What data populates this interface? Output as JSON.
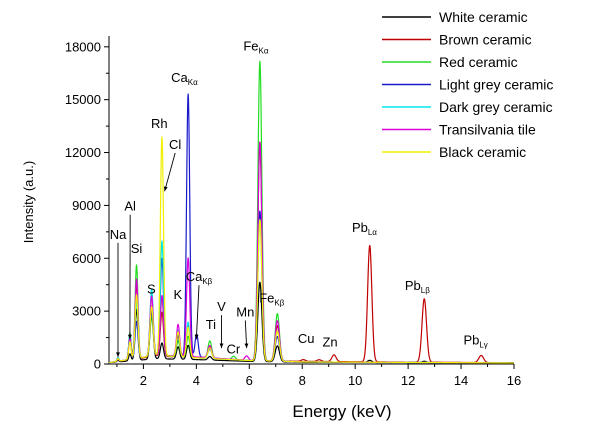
{
  "chart_data": {
    "type": "line",
    "title": "",
    "xlabel": "Energy (keV)",
    "ylabel": "Intensity (a.u.)",
    "xlim": [
      0.7,
      16
    ],
    "ylim": [
      0,
      18500
    ],
    "x_ticks": [
      2,
      4,
      6,
      8,
      10,
      12,
      14,
      16
    ],
    "y_ticks": [
      0,
      3000,
      6000,
      9000,
      12000,
      15000,
      18000
    ],
    "legend": {
      "placement": "top-right"
    },
    "series": [
      {
        "name": "White ceramic",
        "color": "#000000",
        "baseline": [
          [
            0.7,
            80
          ],
          [
            2.5,
            300
          ],
          [
            4,
            250
          ],
          [
            6,
            150
          ],
          [
            8,
            100
          ],
          [
            16,
            60
          ]
        ],
        "peaks": [
          [
            1.04,
            100,
            0.035
          ],
          [
            1.49,
            400,
            0.045
          ],
          [
            1.74,
            2900,
            0.055
          ],
          [
            2.31,
            3000,
            0.06
          ],
          [
            2.7,
            900,
            0.06
          ],
          [
            3.31,
            700,
            0.06
          ],
          [
            3.69,
            800,
            0.06
          ],
          [
            4.51,
            200,
            0.07
          ],
          [
            6.4,
            4500,
            0.075
          ],
          [
            7.06,
            900,
            0.08
          ],
          [
            10.55,
            120,
            0.08
          ],
          [
            12.61,
            80,
            0.08
          ]
        ]
      },
      {
        "name": "Brown ceramic",
        "color": "#c00000",
        "baseline": [
          [
            0.7,
            80
          ],
          [
            2.5,
            450
          ],
          [
            4,
            350
          ],
          [
            6,
            200
          ],
          [
            8,
            150
          ],
          [
            10,
            130
          ],
          [
            16,
            70
          ]
        ],
        "peaks": [
          [
            1.04,
            150,
            0.035
          ],
          [
            1.49,
            1200,
            0.045
          ],
          [
            1.74,
            4300,
            0.055
          ],
          [
            2.31,
            3600,
            0.06
          ],
          [
            2.7,
            2500,
            0.06
          ],
          [
            3.31,
            1200,
            0.06
          ],
          [
            3.69,
            1800,
            0.06
          ],
          [
            4.51,
            700,
            0.07
          ],
          [
            6.4,
            12400,
            0.075
          ],
          [
            7.06,
            2000,
            0.08
          ],
          [
            8.04,
            100,
            0.08
          ],
          [
            8.64,
            100,
            0.08
          ],
          [
            9.2,
            380,
            0.08
          ],
          [
            10.55,
            6600,
            0.08
          ],
          [
            12.61,
            3600,
            0.085
          ],
          [
            14.76,
            400,
            0.09
          ]
        ]
      },
      {
        "name": "Red ceramic",
        "color": "#22dd22",
        "baseline": [
          [
            0.7,
            80
          ],
          [
            2.5,
            500
          ],
          [
            4,
            350
          ],
          [
            6,
            200
          ],
          [
            8,
            120
          ],
          [
            16,
            60
          ]
        ],
        "peaks": [
          [
            1.04,
            200,
            0.035
          ],
          [
            1.49,
            1500,
            0.045
          ],
          [
            1.74,
            5300,
            0.055
          ],
          [
            2.31,
            2200,
            0.06
          ],
          [
            2.7,
            3300,
            0.06
          ],
          [
            3.31,
            900,
            0.06
          ],
          [
            3.69,
            1200,
            0.06
          ],
          [
            4.51,
            1000,
            0.07
          ],
          [
            5.41,
            200,
            0.07
          ],
          [
            6.4,
            17000,
            0.075
          ],
          [
            7.06,
            2700,
            0.08
          ]
        ]
      },
      {
        "name": "Light grey ceramic",
        "color": "#1a1acc",
        "baseline": [
          [
            0.7,
            80
          ],
          [
            2.5,
            500
          ],
          [
            4,
            400
          ],
          [
            6,
            200
          ],
          [
            8,
            120
          ],
          [
            16,
            60
          ]
        ],
        "peaks": [
          [
            1.04,
            200,
            0.035
          ],
          [
            1.49,
            1300,
            0.045
          ],
          [
            1.74,
            2100,
            0.055
          ],
          [
            2.31,
            2500,
            0.06
          ],
          [
            2.7,
            5500,
            0.06
          ],
          [
            3.31,
            1200,
            0.06
          ],
          [
            3.69,
            14900,
            0.06
          ],
          [
            4.01,
            1300,
            0.06
          ],
          [
            4.51,
            500,
            0.07
          ],
          [
            6.4,
            8500,
            0.075
          ],
          [
            7.06,
            1400,
            0.08
          ]
        ]
      },
      {
        "name": "Dark grey ceramic",
        "color": "#00e5ee",
        "baseline": [
          [
            0.7,
            80
          ],
          [
            2.5,
            500
          ],
          [
            4,
            350
          ],
          [
            6,
            200
          ],
          [
            8,
            120
          ],
          [
            16,
            60
          ]
        ],
        "peaks": [
          [
            1.04,
            200,
            0.035
          ],
          [
            1.49,
            1400,
            0.045
          ],
          [
            1.74,
            3300,
            0.055
          ],
          [
            2.31,
            3800,
            0.06
          ],
          [
            2.7,
            6500,
            0.06
          ],
          [
            3.31,
            1500,
            0.06
          ],
          [
            3.69,
            2000,
            0.06
          ],
          [
            4.51,
            600,
            0.07
          ],
          [
            6.4,
            8000,
            0.075
          ],
          [
            7.06,
            1700,
            0.08
          ]
        ]
      },
      {
        "name": "Transilvania tile",
        "color": "#dd00dd",
        "baseline": [
          [
            0.7,
            80
          ],
          [
            2.5,
            500
          ],
          [
            4,
            400
          ],
          [
            6,
            200
          ],
          [
            8,
            120
          ],
          [
            16,
            60
          ]
        ],
        "peaks": [
          [
            1.04,
            150,
            0.035
          ],
          [
            1.49,
            1200,
            0.045
          ],
          [
            1.74,
            4500,
            0.055
          ],
          [
            2.31,
            3400,
            0.06
          ],
          [
            2.7,
            3400,
            0.06
          ],
          [
            3.31,
            1800,
            0.06
          ],
          [
            3.69,
            5600,
            0.06
          ],
          [
            4.51,
            700,
            0.07
          ],
          [
            5.9,
            250,
            0.07
          ],
          [
            6.4,
            12400,
            0.075
          ],
          [
            7.06,
            2300,
            0.08
          ]
        ]
      },
      {
        "name": "Black ceramic",
        "color": "#f0f000",
        "baseline": [
          [
            0.7,
            80
          ],
          [
            2.5,
            500
          ],
          [
            4,
            350
          ],
          [
            6,
            200
          ],
          [
            8,
            120
          ],
          [
            16,
            60
          ]
        ],
        "peaks": [
          [
            1.04,
            150,
            0.035
          ],
          [
            1.49,
            1000,
            0.045
          ],
          [
            1.74,
            3600,
            0.055
          ],
          [
            2.31,
            2800,
            0.06
          ],
          [
            2.7,
            12400,
            0.06
          ],
          [
            3.31,
            1400,
            0.06
          ],
          [
            3.69,
            1700,
            0.06
          ],
          [
            4.51,
            600,
            0.07
          ],
          [
            6.4,
            8000,
            0.075
          ],
          [
            7.06,
            1700,
            0.08
          ]
        ]
      }
    ],
    "annotations": [
      {
        "label": "Na",
        "sub": "",
        "x": 1.04,
        "y": 7100,
        "arrow_to": [
          1.04,
          400
        ]
      },
      {
        "label": "Al",
        "sub": "",
        "x": 1.5,
        "y": 8700,
        "arrow_to": [
          1.49,
          1400
        ]
      },
      {
        "label": "Si",
        "sub": "",
        "x": 1.74,
        "y": 6300,
        "arrow_to": null
      },
      {
        "label": "S",
        "sub": "",
        "x": 2.3,
        "y": 4000,
        "arrow_to": null
      },
      {
        "label": "Rh",
        "sub": "",
        "x": 2.6,
        "y": 13400,
        "arrow_to": null
      },
      {
        "label": "Cl",
        "sub": "",
        "x": 3.2,
        "y": 12200,
        "arrow_to": [
          2.8,
          9800
        ]
      },
      {
        "label": "K",
        "sub": "",
        "x": 3.3,
        "y": 3700,
        "arrow_to": null
      },
      {
        "label": "Ca",
        "sub": "Kα",
        "x": 3.55,
        "y": 16000,
        "arrow_to": null
      },
      {
        "label": "Ca",
        "sub": "Kβ",
        "x": 4.1,
        "y": 4700,
        "arrow_to": [
          4.0,
          1400
        ]
      },
      {
        "label": "Ti",
        "sub": "",
        "x": 4.55,
        "y": 2000,
        "arrow_to": null
      },
      {
        "label": "V",
        "sub": "",
        "x": 4.95,
        "y": 3000,
        "arrow_to": [
          4.95,
          900
        ]
      },
      {
        "label": "Cr",
        "sub": "",
        "x": 5.4,
        "y": 600,
        "arrow_to": null
      },
      {
        "label": "Mn",
        "sub": "",
        "x": 5.85,
        "y": 2700,
        "arrow_to": [
          5.9,
          900
        ]
      },
      {
        "label": "Fe",
        "sub": "Kα",
        "x": 6.25,
        "y": 17800,
        "arrow_to": null
      },
      {
        "label": "Fe",
        "sub": "Kβ",
        "x": 6.85,
        "y": 3500,
        "arrow_to": null
      },
      {
        "label": "Cu",
        "sub": "",
        "x": 8.15,
        "y": 1200,
        "arrow_to": null
      },
      {
        "label": "Zn",
        "sub": "",
        "x": 9.05,
        "y": 1000,
        "arrow_to": null
      },
      {
        "label": "Pb",
        "sub": "Lα",
        "x": 10.35,
        "y": 7500,
        "arrow_to": null
      },
      {
        "label": "Pb",
        "sub": "Lβ",
        "x": 12.35,
        "y": 4200,
        "arrow_to": null
      },
      {
        "label": "Pb",
        "sub": "Lγ",
        "x": 14.55,
        "y": 1100,
        "arrow_to": null
      }
    ]
  }
}
